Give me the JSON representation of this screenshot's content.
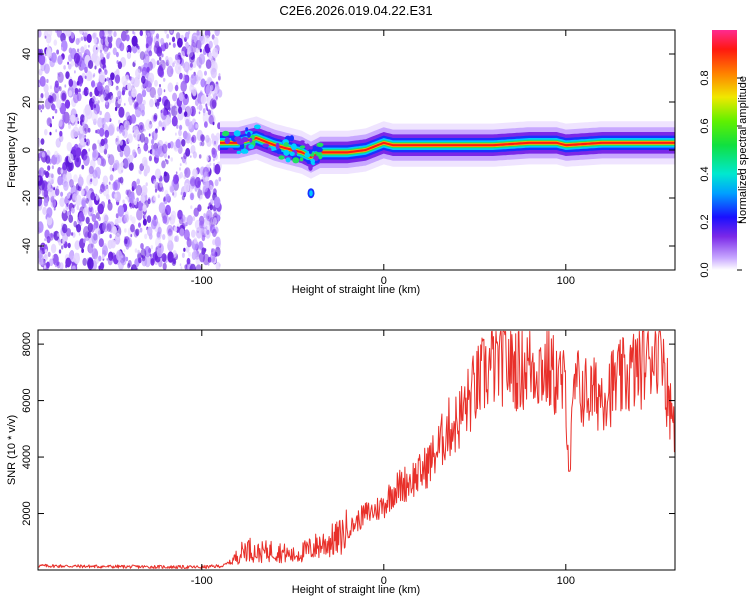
{
  "title": "C2E6.2026.019.04.22.E31",
  "colors": {
    "snr_line": "#e8302a",
    "colormap": [
      "#ffffff",
      "#d9c2ff",
      "#8f3cf0",
      "#4a10d0",
      "#1010ff",
      "#00b4ff",
      "#00e0a0",
      "#30e020",
      "#ffe000",
      "#ff7000",
      "#ff1010",
      "#ff3090"
    ]
  },
  "chart_data": [
    {
      "type": "heatmap",
      "title": "C2E6.2026.019.04.22.E31",
      "xlabel": "Height of straight line (km)",
      "ylabel": "Frequency (Hz)",
      "xlim": [
        -190,
        160
      ],
      "ylim": [
        -50,
        50
      ],
      "xticks": [
        -100,
        0,
        100
      ],
      "xtick_labels": [
        "-100",
        "0",
        "100"
      ],
      "yticks": [
        -40,
        -20,
        0,
        20,
        40
      ],
      "ytick_labels": [
        "-40",
        "-20",
        "0",
        "20",
        "40"
      ],
      "noise_region_x": [
        -190,
        -90
      ],
      "ridge": {
        "x": [
          -90,
          -80,
          -70,
          -60,
          -50,
          -45,
          -40,
          -35,
          -30,
          -20,
          -10,
          0,
          5,
          10,
          20,
          40,
          60,
          80,
          90,
          95,
          100,
          120,
          140,
          160
        ],
        "y": [
          3,
          3,
          5,
          2,
          0,
          -1,
          -3,
          -1,
          -1,
          -1,
          0,
          3,
          2,
          2,
          2,
          2,
          2,
          3,
          3,
          3,
          2,
          3,
          3,
          3
        ]
      },
      "colorbar": {
        "label": "Normalized spectral amplitude",
        "range": [
          0,
          1
        ],
        "ticks": [
          0.0,
          0.2,
          0.4,
          0.6,
          0.8
        ],
        "tick_labels": [
          "0.0",
          "0.2",
          "0.4",
          "0.6",
          "0.8"
        ]
      }
    },
    {
      "type": "line",
      "xlabel": "Height of straight line (km)",
      "ylabel": "SNR (10 * v/v)",
      "xlim": [
        -190,
        160
      ],
      "ylim": [
        0,
        8500
      ],
      "xticks": [
        -100,
        0,
        100
      ],
      "xtick_labels": [
        "-100",
        "0",
        "100"
      ],
      "yticks": [
        2000,
        4000,
        6000,
        8000
      ],
      "ytick_labels": [
        "2000",
        "4000",
        "6000",
        "8000"
      ],
      "series": [
        {
          "name": "SNR",
          "x": [
            -190,
            -150,
            -100,
            -88,
            -82,
            -75,
            -70,
            -60,
            -50,
            -42,
            -35,
            -30,
            -25,
            -20,
            -15,
            -10,
            -5,
            0,
            5,
            10,
            15,
            20,
            25,
            30,
            35,
            40,
            45,
            50,
            55,
            60,
            65,
            70,
            75,
            80,
            85,
            90,
            95,
            100,
            102,
            105,
            110,
            115,
            120,
            130,
            140,
            145,
            150,
            153,
            155,
            158,
            160
          ],
          "y": [
            150,
            120,
            100,
            150,
            400,
            800,
            600,
            700,
            500,
            700,
            900,
            1000,
            1100,
            1400,
            1700,
            2000,
            2100,
            2300,
            2800,
            3000,
            3200,
            3400,
            3800,
            4300,
            5000,
            5200,
            5800,
            6400,
            6900,
            7300,
            7400,
            7300,
            7100,
            7300,
            7200,
            7100,
            6800,
            6400,
            3500,
            6600,
            6300,
            6200,
            6300,
            6700,
            7200,
            7500,
            8000,
            8300,
            6600,
            5600,
            5300
          ]
        }
      ]
    }
  ]
}
